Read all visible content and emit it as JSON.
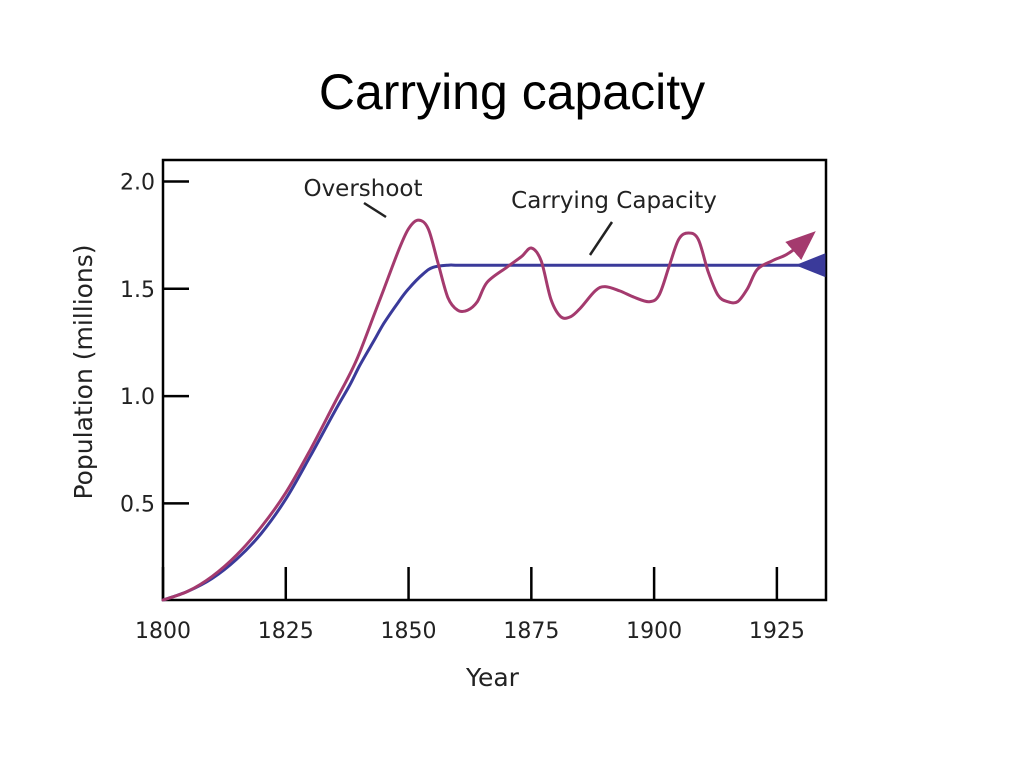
{
  "slide": {
    "title": "Carrying capacity"
  },
  "chart_data": {
    "type": "line",
    "title": "",
    "xlabel": "Year",
    "ylabel": "Population (millions)",
    "xlim": [
      1800,
      1935
    ],
    "ylim": [
      0.05,
      2.1
    ],
    "x_ticks": [
      1800,
      1825,
      1850,
      1875,
      1900,
      1925
    ],
    "y_ticks": [
      0.5,
      1.0,
      1.5,
      2.0
    ],
    "x_tick_labels": [
      "1800",
      "1825",
      "1850",
      "1875",
      "1900",
      "1925"
    ],
    "y_tick_labels": [
      "0.5",
      "1.0",
      "1.5",
      "2.0"
    ],
    "grid": false,
    "annotations": [
      "Overshoot",
      "Carrying Capacity"
    ],
    "colors": {
      "carrying_capacity": "#3a3a9a",
      "population": "#a43a6e",
      "axis": "#000000"
    },
    "series": [
      {
        "key": "carrying_capacity",
        "x": [
          1800,
          1805,
          1810,
          1815,
          1820,
          1825,
          1830,
          1835,
          1838,
          1840,
          1843,
          1845,
          1848,
          1850,
          1853,
          1855,
          1858,
          1860,
          1865,
          1870,
          1875,
          1880,
          1885,
          1890,
          1895,
          1900,
          1905,
          1910,
          1915,
          1920,
          1925,
          1930,
          1930
        ],
        "y": [
          0.05,
          0.09,
          0.15,
          0.24,
          0.36,
          0.52,
          0.72,
          0.93,
          1.05,
          1.14,
          1.26,
          1.34,
          1.44,
          1.5,
          1.57,
          1.6,
          1.61,
          1.61,
          1.61,
          1.61,
          1.61,
          1.61,
          1.61,
          1.61,
          1.61,
          1.61,
          1.61,
          1.61,
          1.61,
          1.61,
          1.61,
          1.61,
          1.61
        ]
      },
      {
        "key": "population",
        "x": [
          1800,
          1805,
          1810,
          1815,
          1820,
          1825,
          1830,
          1835,
          1838,
          1840,
          1843,
          1845,
          1848,
          1850,
          1852,
          1854,
          1856,
          1858,
          1860,
          1862,
          1864,
          1866,
          1870,
          1873,
          1875,
          1877,
          1879,
          1881,
          1883,
          1885,
          1888,
          1890,
          1893,
          1896,
          1899,
          1901,
          1903,
          1905,
          1907,
          1909,
          1911,
          1913,
          1915,
          1917,
          1919,
          1921,
          1924,
          1927,
          1930,
          1932
        ],
        "y": [
          0.05,
          0.09,
          0.16,
          0.26,
          0.39,
          0.55,
          0.75,
          0.97,
          1.1,
          1.2,
          1.38,
          1.5,
          1.68,
          1.78,
          1.82,
          1.78,
          1.62,
          1.46,
          1.4,
          1.4,
          1.44,
          1.53,
          1.6,
          1.65,
          1.69,
          1.63,
          1.45,
          1.37,
          1.37,
          1.41,
          1.49,
          1.51,
          1.49,
          1.46,
          1.44,
          1.47,
          1.6,
          1.73,
          1.76,
          1.73,
          1.58,
          1.47,
          1.44,
          1.44,
          1.5,
          1.59,
          1.63,
          1.66,
          1.71,
          1.75
        ]
      }
    ]
  }
}
